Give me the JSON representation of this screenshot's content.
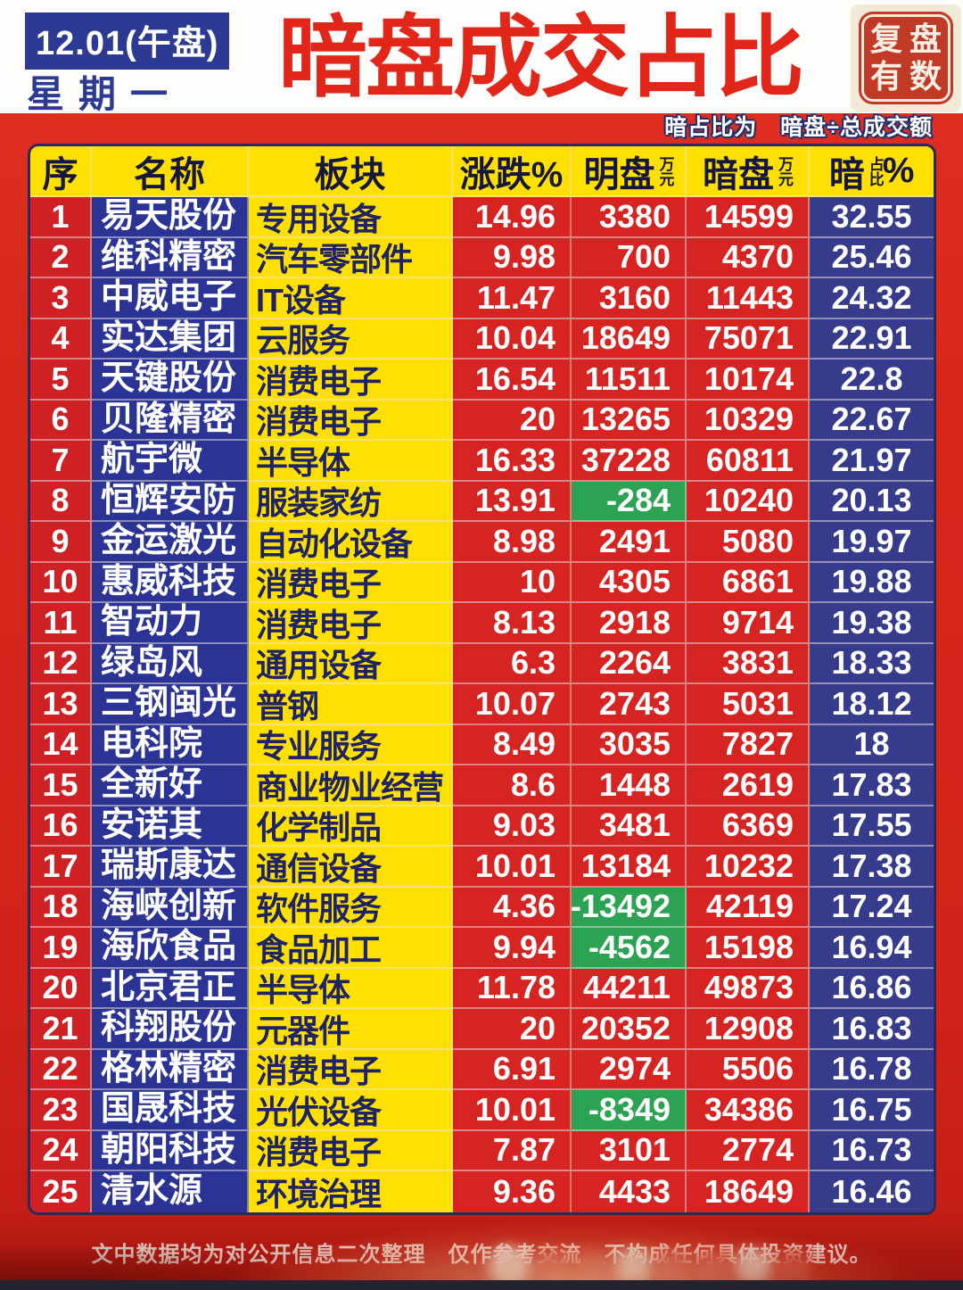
{
  "header": {
    "date_badge": "12.01(午盘)",
    "weekday": "星期一",
    "title": "暗盘成交占比",
    "seal_line1": "复盘",
    "seal_line2": "有数",
    "formula_note": "暗占比为　暗盘÷总成交额"
  },
  "chart_data": {
    "type": "table",
    "title": "暗盘成交占比",
    "subtitle": "12.01(午盘) 星期一",
    "note": "暗占比为 暗盘÷总成交额",
    "header": {
      "seq": "序",
      "name": "名称",
      "sector": "板块",
      "change": "涨跌%",
      "bright": "明盘",
      "bright_unit": "万元",
      "dark": "暗盘",
      "dark_unit": "万元",
      "ratio_main": "暗",
      "ratio_sub": "占比",
      "ratio_pct": "%"
    },
    "columns": [
      "序",
      "名称",
      "板块",
      "涨跌%",
      "明盘(万元)",
      "暗盘(万元)",
      "暗占比%"
    ],
    "rows": [
      {
        "seq": "1",
        "name": "易天股份",
        "sector": "专用设备",
        "change": "14.96",
        "bright": "3380",
        "dark": "14599",
        "ratio": "32.55"
      },
      {
        "seq": "2",
        "name": "维科精密",
        "sector": "汽车零部件",
        "change": "9.98",
        "bright": "700",
        "dark": "4370",
        "ratio": "25.46"
      },
      {
        "seq": "3",
        "name": "中威电子",
        "sector": "IT设备",
        "change": "11.47",
        "bright": "3160",
        "dark": "11443",
        "ratio": "24.32"
      },
      {
        "seq": "4",
        "name": "实达集团",
        "sector": "云服务",
        "change": "10.04",
        "bright": "18649",
        "dark": "75071",
        "ratio": "22.91"
      },
      {
        "seq": "5",
        "name": "天键股份",
        "sector": "消费电子",
        "change": "16.54",
        "bright": "11511",
        "dark": "10174",
        "ratio": "22.8"
      },
      {
        "seq": "6",
        "name": "贝隆精密",
        "sector": "消费电子",
        "change": "20",
        "bright": "13265",
        "dark": "10329",
        "ratio": "22.67"
      },
      {
        "seq": "7",
        "name": "航宇微",
        "sector": "半导体",
        "change": "16.33",
        "bright": "37228",
        "dark": "60811",
        "ratio": "21.97"
      },
      {
        "seq": "8",
        "name": "恒辉安防",
        "sector": "服装家纺",
        "change": "13.91",
        "bright": "-284",
        "dark": "10240",
        "ratio": "20.13"
      },
      {
        "seq": "9",
        "name": "金运激光",
        "sector": "自动化设备",
        "change": "8.98",
        "bright": "2491",
        "dark": "5080",
        "ratio": "19.97"
      },
      {
        "seq": "10",
        "name": "惠威科技",
        "sector": "消费电子",
        "change": "10",
        "bright": "4305",
        "dark": "6861",
        "ratio": "19.88"
      },
      {
        "seq": "11",
        "name": "智动力",
        "sector": "消费电子",
        "change": "8.13",
        "bright": "2918",
        "dark": "9714",
        "ratio": "19.38"
      },
      {
        "seq": "12",
        "name": "绿岛风",
        "sector": "通用设备",
        "change": "6.3",
        "bright": "2264",
        "dark": "3831",
        "ratio": "18.33"
      },
      {
        "seq": "13",
        "name": "三钢闽光",
        "sector": "普钢",
        "change": "10.07",
        "bright": "2743",
        "dark": "5031",
        "ratio": "18.12"
      },
      {
        "seq": "14",
        "name": "电科院",
        "sector": "专业服务",
        "change": "8.49",
        "bright": "3035",
        "dark": "7827",
        "ratio": "18"
      },
      {
        "seq": "15",
        "name": "全新好",
        "sector": "商业物业经营",
        "change": "8.6",
        "bright": "1448",
        "dark": "2619",
        "ratio": "17.83"
      },
      {
        "seq": "16",
        "name": "安诺其",
        "sector": "化学制品",
        "change": "9.03",
        "bright": "3481",
        "dark": "6369",
        "ratio": "17.55"
      },
      {
        "seq": "17",
        "name": "瑞斯康达",
        "sector": "通信设备",
        "change": "10.01",
        "bright": "13184",
        "dark": "10232",
        "ratio": "17.38"
      },
      {
        "seq": "18",
        "name": "海峡创新",
        "sector": "软件服务",
        "change": "4.36",
        "bright": "-13492",
        "dark": "42119",
        "ratio": "17.24"
      },
      {
        "seq": "19",
        "name": "海欣食品",
        "sector": "食品加工",
        "change": "9.94",
        "bright": "-4562",
        "dark": "15198",
        "ratio": "16.94"
      },
      {
        "seq": "20",
        "name": "北京君正",
        "sector": "半导体",
        "change": "11.78",
        "bright": "44211",
        "dark": "49873",
        "ratio": "16.86"
      },
      {
        "seq": "21",
        "name": "科翔股份",
        "sector": "元器件",
        "change": "20",
        "bright": "20352",
        "dark": "12908",
        "ratio": "16.83"
      },
      {
        "seq": "22",
        "name": "格林精密",
        "sector": "消费电子",
        "change": "6.91",
        "bright": "2974",
        "dark": "5506",
        "ratio": "16.78"
      },
      {
        "seq": "23",
        "name": "国晟科技",
        "sector": "光伏设备",
        "change": "10.01",
        "bright": "-8349",
        "dark": "34386",
        "ratio": "16.75"
      },
      {
        "seq": "24",
        "name": "朝阳科技",
        "sector": "消费电子",
        "change": "7.87",
        "bright": "3101",
        "dark": "2774",
        "ratio": "16.73"
      },
      {
        "seq": "25",
        "name": "清水源",
        "sector": "环境治理",
        "change": "9.36",
        "bright": "4433",
        "dark": "18649",
        "ratio": "16.46"
      }
    ],
    "colors": {
      "page_red": "#d8261c",
      "cell_red": "#d52421",
      "navy": "#2b3494",
      "ratio_navy": "#363c8b",
      "yellow": "#ffe000",
      "negative_green": "#2ca253",
      "title_red": "#e3261a"
    },
    "layout_hints": {
      "negative_bright_cells_highlighted": true,
      "grid": true
    }
  },
  "footer": {
    "disclaimer": "文中数据均为对公开信息二次整理　仅作参考交流　不构成任何具体投资建议。"
  }
}
